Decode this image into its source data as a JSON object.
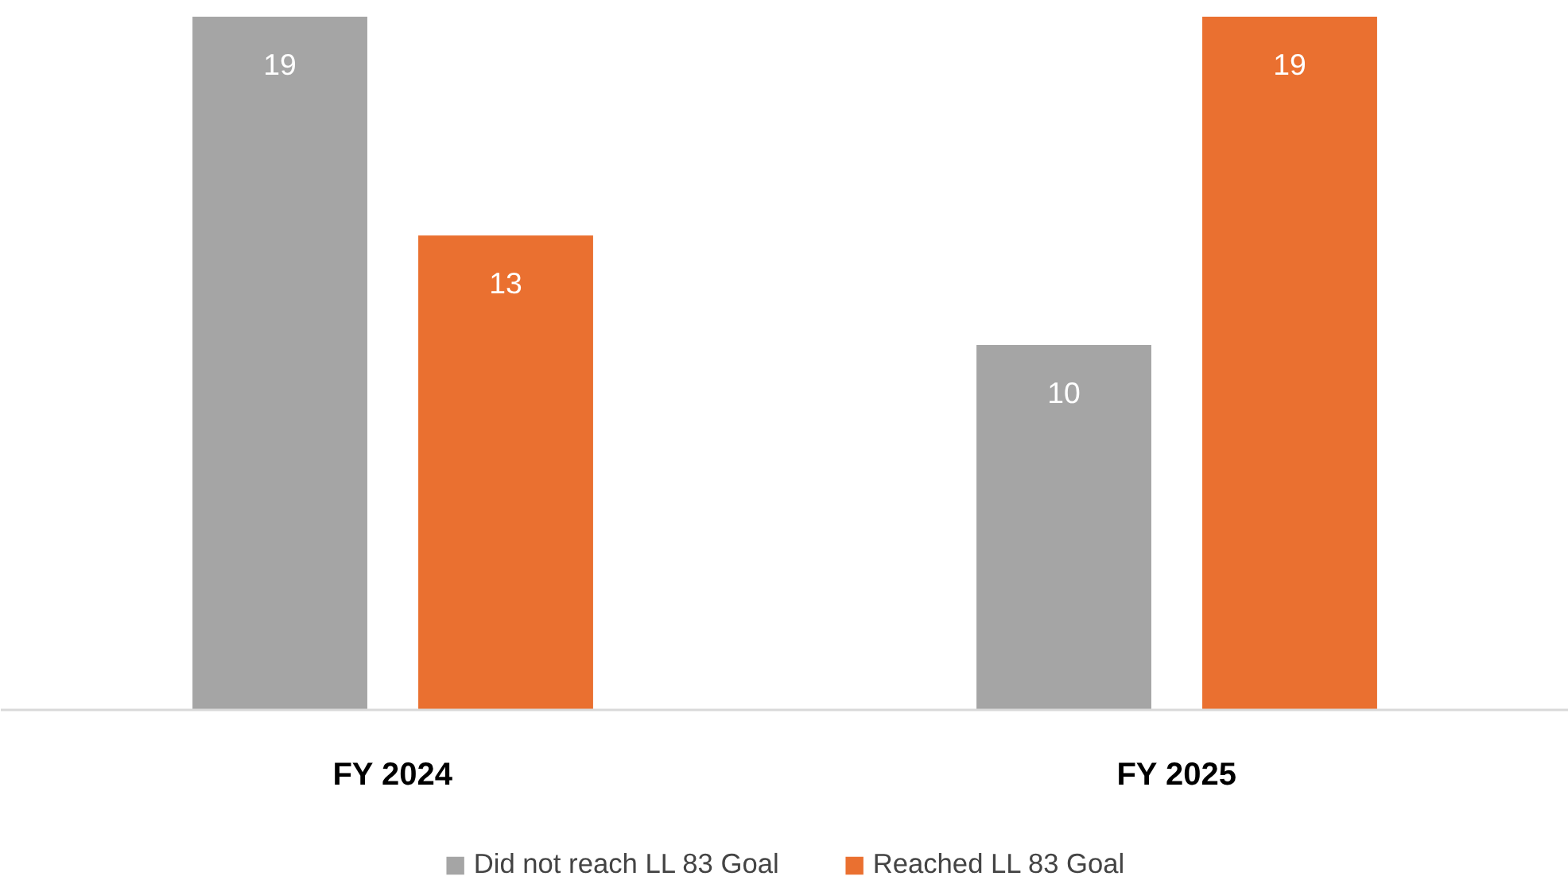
{
  "chart_data": {
    "type": "bar",
    "categories": [
      "FY 2024",
      "FY 2025"
    ],
    "series": [
      {
        "name": "Did not reach LL 83 Goal",
        "color": "#a5a5a5",
        "values": [
          19,
          10
        ]
      },
      {
        "name": "Reached LL 83 Goal",
        "color": "#ea7030",
        "values": [
          13,
          19
        ]
      }
    ],
    "data_labels": true,
    "legend": "bottom"
  }
}
